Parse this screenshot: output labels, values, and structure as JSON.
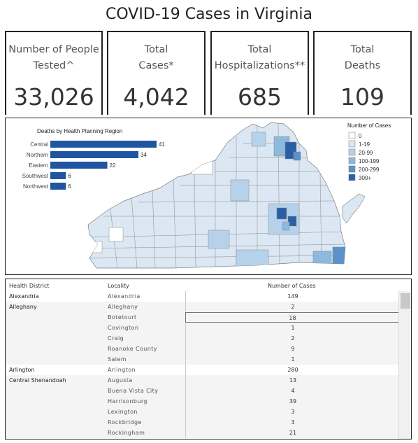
{
  "title": "COVID-19 Cases in Virginia",
  "kpis": [
    {
      "label": "Number of People\nTested^",
      "value": "33,026"
    },
    {
      "label": "Total\nCases*",
      "value": "4,042"
    },
    {
      "label": "Total\nHospitalizations**",
      "value": "685"
    },
    {
      "label": "Total\nDeaths",
      "value": "109"
    }
  ],
  "deaths_chart": {
    "title": "Deaths by Health Planning Region",
    "color": "#1f55a1",
    "chart_data": {
      "type": "bar",
      "title": "Deaths by Health Planning Region",
      "categories": [
        "Central",
        "Northern",
        "Eastern",
        "Southwest",
        "Northwest"
      ],
      "values": [
        41,
        34,
        22,
        6,
        6
      ]
    }
  },
  "legend": {
    "title": "Number of Cases",
    "items": [
      {
        "label": "0",
        "color": "#ffffff"
      },
      {
        "label": "1-19",
        "color": "#dbe7f3"
      },
      {
        "label": "20-99",
        "color": "#b6d2ea"
      },
      {
        "label": "100-199",
        "color": "#8fb8dd"
      },
      {
        "label": "200-299",
        "color": "#5a92c9"
      },
      {
        "label": "300+",
        "color": "#2a5fa6"
      }
    ]
  },
  "table": {
    "headers": {
      "district": "Health District",
      "locality": "Locality",
      "cases": "Number of Cases"
    },
    "rows": [
      {
        "district": "Alexandria",
        "locality": "Alexandria",
        "cases": "149"
      },
      {
        "district": "Alleghany",
        "locality": "Alleghany",
        "cases": "2"
      },
      {
        "district": "",
        "locality": "Botetourt",
        "cases": "18"
      },
      {
        "district": "",
        "locality": "Covington",
        "cases": "1"
      },
      {
        "district": "",
        "locality": "Craig",
        "cases": "2"
      },
      {
        "district": "",
        "locality": "Roanoke County",
        "cases": "9"
      },
      {
        "district": "",
        "locality": "Salem",
        "cases": "1"
      },
      {
        "district": "Arlington",
        "locality": "Arlington",
        "cases": "280"
      },
      {
        "district": "Central Shenandoah",
        "locality": "Augusta",
        "cases": "13"
      },
      {
        "district": "",
        "locality": "Buena Vista City",
        "cases": "4"
      },
      {
        "district": "",
        "locality": "Harrisonburg",
        "cases": "39"
      },
      {
        "district": "",
        "locality": "Lexington",
        "cases": "3"
      },
      {
        "district": "",
        "locality": "Rockbridge",
        "cases": "3"
      },
      {
        "district": "",
        "locality": "Rockingham",
        "cases": "21"
      }
    ]
  }
}
